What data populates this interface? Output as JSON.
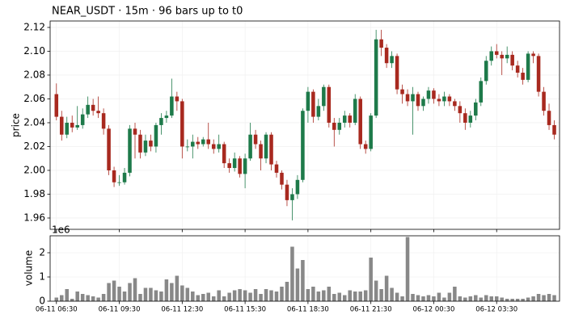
{
  "chart_data": {
    "type": "candlestick",
    "title": "NEAR_USDT  ·  15m  ·  96 bars up to t0",
    "ylabel": "price",
    "up_color": "#1e7a4a",
    "down_color": "#a8291f",
    "grid": true,
    "xlim": [
      -1.2,
      96
    ],
    "xticks": [
      {
        "value": 0,
        "label": "06-11 06:30"
      },
      {
        "value": 12,
        "label": "06-11 09:30"
      },
      {
        "value": 24,
        "label": "06-11 12:30"
      },
      {
        "value": 36,
        "label": "06-11 15:30"
      },
      {
        "value": 48,
        "label": "06-11 18:30"
      },
      {
        "value": 60,
        "label": "06-11 21:30"
      },
      {
        "value": 72,
        "label": "06-12 00:30"
      },
      {
        "value": 84,
        "label": "06-12 03:30"
      }
    ],
    "ylim": [
      1.9505,
      2.1254
    ],
    "yticks": [
      1.96,
      1.98,
      {
        "value": 2,
        "label": "2.00"
      },
      2.02,
      2.04,
      2.06,
      2.08,
      {
        "value": 2.1,
        "label": "2.10"
      },
      2.12
    ],
    "open": [
      2.064,
      2.045,
      2.03,
      2.04,
      2.036,
      2.038,
      2.047,
      2.055,
      2.05,
      2.048,
      2.035,
      2.0,
      1.99,
      1.99,
      1.998,
      2.035,
      2.03,
      2.015,
      2.025,
      2.02,
      2.038,
      2.044,
      2.046,
      2.062,
      2.058,
      2.02,
      2.02,
      2.024,
      2.022,
      2.026,
      2.022,
      2.018,
      2.022,
      2.006,
      2.002,
      2.01,
      1.997,
      2.01,
      2.03,
      2.022,
      2.01,
      2.03,
      2.005,
      1.998,
      1.988,
      1.975,
      1.98,
      1.992,
      2.05,
      2.066,
      2.045,
      2.054,
      2.07,
      2.04,
      2.034,
      2.04,
      2.046,
      2.04,
      2.06,
      2.022,
      2.018,
      2.046,
      2.11,
      2.103,
      2.09,
      2.096,
      2.068,
      2.064,
      2.058,
      2.064,
      2.054,
      2.06,
      2.067,
      2.06,
      2.058,
      2.062,
      2.058,
      2.054,
      2.048,
      2.04,
      2.046,
      2.057,
      2.075,
      2.092,
      2.1,
      2.097,
      2.094,
      2.097,
      2.088,
      2.082,
      2.076,
      2.098,
      2.096,
      2.066,
      2.05,
      2.038
    ],
    "high": [
      2.073,
      2.05,
      2.045,
      2.046,
      2.054,
      2.052,
      2.062,
      2.06,
      2.062,
      2.052,
      2.038,
      2.003,
      1.996,
      2.002,
      2.038,
      2.04,
      2.034,
      2.03,
      2.03,
      2.04,
      2.048,
      2.05,
      2.077,
      2.066,
      2.06,
      2.026,
      2.03,
      2.028,
      2.028,
      2.04,
      2.026,
      2.03,
      2.024,
      2.01,
      2.015,
      2.012,
      2.014,
      2.04,
      2.034,
      2.025,
      2.032,
      2.032,
      2.008,
      2.0,
      1.992,
      1.985,
      1.996,
      2.052,
      2.07,
      2.068,
      2.06,
      2.072,
      2.072,
      2.044,
      2.044,
      2.05,
      2.048,
      2.064,
      2.062,
      2.025,
      2.048,
      2.118,
      2.118,
      2.106,
      2.1,
      2.098,
      2.072,
      2.068,
      2.07,
      2.066,
      2.062,
      2.07,
      2.069,
      2.064,
      2.066,
      2.064,
      2.06,
      2.058,
      2.052,
      2.05,
      2.06,
      2.078,
      2.096,
      2.104,
      2.106,
      2.1,
      2.104,
      2.1,
      2.092,
      2.086,
      2.1,
      2.1,
      2.098,
      2.07,
      2.056,
      2.042
    ],
    "low": [
      2.042,
      2.025,
      2.027,
      2.032,
      2.034,
      2.035,
      2.044,
      2.046,
      2.044,
      2.03,
      1.996,
      1.986,
      1.987,
      1.988,
      1.995,
      2.01,
      2.01,
      2.012,
      2.016,
      2.015,
      2.03,
      2.04,
      2.044,
      2.05,
      2.01,
      2.016,
      2.01,
      2.018,
      2.02,
      2.018,
      2.014,
      2.015,
      2.002,
      1.998,
      1.999,
      1.994,
      1.985,
      2.008,
      2.018,
      2.0,
      2.006,
      2.0,
      1.994,
      1.984,
      1.97,
      1.958,
      1.976,
      1.99,
      2.04,
      2.04,
      2.042,
      2.05,
      2.036,
      2.02,
      2.03,
      2.036,
      2.036,
      2.038,
      2.018,
      2.014,
      2.016,
      2.044,
      2.096,
      2.086,
      2.086,
      2.064,
      2.056,
      2.054,
      2.03,
      2.05,
      2.05,
      2.056,
      2.056,
      2.054,
      2.054,
      2.054,
      2.05,
      2.04,
      2.034,
      2.036,
      2.042,
      2.054,
      2.072,
      2.088,
      2.094,
      2.08,
      2.09,
      2.084,
      2.078,
      2.072,
      2.074,
      2.09,
      2.062,
      2.046,
      2.034,
      2.026
    ],
    "close": [
      2.045,
      2.03,
      2.04,
      2.036,
      2.038,
      2.047,
      2.055,
      2.05,
      2.048,
      2.035,
      2.0,
      1.99,
      1.99,
      1.998,
      2.035,
      2.03,
      2.015,
      2.025,
      2.02,
      2.038,
      2.044,
      2.046,
      2.062,
      2.058,
      2.02,
      2.02,
      2.024,
      2.022,
      2.026,
      2.022,
      2.018,
      2.022,
      2.006,
      2.002,
      2.01,
      1.997,
      2.01,
      2.03,
      2.022,
      2.01,
      2.03,
      2.005,
      1.998,
      1.988,
      1.975,
      1.98,
      1.992,
      2.05,
      2.066,
      2.045,
      2.054,
      2.07,
      2.04,
      2.034,
      2.04,
      2.046,
      2.04,
      2.06,
      2.022,
      2.018,
      2.046,
      2.11,
      2.103,
      2.09,
      2.096,
      2.068,
      2.064,
      2.058,
      2.064,
      2.054,
      2.06,
      2.067,
      2.06,
      2.058,
      2.062,
      2.058,
      2.054,
      2.048,
      2.04,
      2.046,
      2.057,
      2.075,
      2.092,
      2.1,
      2.097,
      2.094,
      2.097,
      2.088,
      2.082,
      2.076,
      2.098,
      2.096,
      2.066,
      2.05,
      2.038,
      2.03
    ],
    "volume": {
      "ylabel": "volume",
      "offset_label": "1e6",
      "color": "#888888",
      "ylim": [
        0,
        2700000
      ],
      "yticks": [
        0,
        {
          "value": 1000000,
          "label": "1"
        },
        {
          "value": 2000000,
          "label": "2"
        }
      ],
      "values": [
        150000,
        250000,
        500000,
        100000,
        400000,
        300000,
        250000,
        200000,
        150000,
        300000,
        750000,
        850000,
        600000,
        400000,
        750000,
        950000,
        300000,
        550000,
        550000,
        450000,
        400000,
        900000,
        750000,
        1050000,
        650000,
        550000,
        400000,
        250000,
        300000,
        350000,
        200000,
        450000,
        200000,
        350000,
        450000,
        500000,
        450000,
        350000,
        500000,
        300000,
        500000,
        450000,
        400000,
        600000,
        800000,
        2250000,
        1350000,
        1700000,
        500000,
        600000,
        400000,
        450000,
        600000,
        300000,
        350000,
        250000,
        450000,
        400000,
        400000,
        450000,
        1800000,
        850000,
        500000,
        1050000,
        550000,
        350000,
        200000,
        2650000,
        300000,
        250000,
        200000,
        250000,
        200000,
        350000,
        150000,
        350000,
        600000,
        200000,
        150000,
        200000,
        250000,
        150000,
        250000,
        200000,
        200000,
        150000,
        100000,
        100000,
        100000,
        100000,
        150000,
        200000,
        300000,
        250000,
        300000,
        250000
      ]
    }
  }
}
